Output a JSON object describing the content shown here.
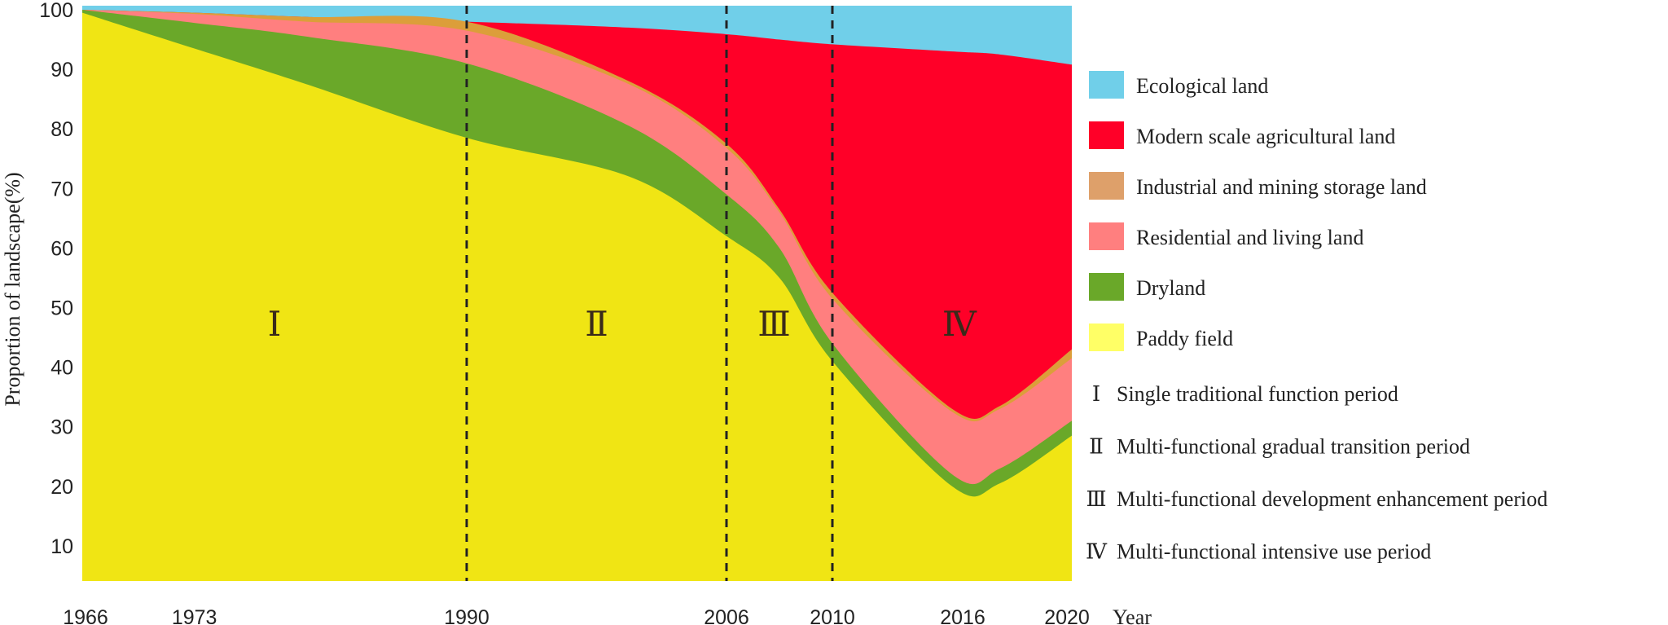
{
  "chart_data": {
    "type": "area",
    "stacked": true,
    "title": "",
    "xlabel": "Year",
    "ylabel": "Proportion of landscape(%)",
    "ylim": [
      4,
      100
    ],
    "yticks": [
      10,
      20,
      30,
      40,
      50,
      60,
      70,
      80,
      90,
      100
    ],
    "xticks": [
      1966,
      1973,
      1990,
      2006,
      2010,
      2016,
      2020
    ],
    "x": [
      1966,
      1973,
      1980,
      1990,
      2000,
      2006,
      2008,
      2010,
      2015,
      2017,
      2020
    ],
    "series": [
      {
        "name": "Paddy field",
        "color": "#f0e514",
        "legend_color": "#ffff66",
        "values": [
          99.5,
          93.5,
          87.5,
          78.5,
          72,
          62,
          55,
          41,
          20,
          20.5,
          28.5
        ]
      },
      {
        "name": "Dryland",
        "color": "#6aa829",
        "values": [
          0.5,
          4.3,
          8,
          12.5,
          8.5,
          7,
          5,
          3,
          2,
          2.5,
          2.5
        ]
      },
      {
        "name": "Residential and living land",
        "color": "#ff7f7f",
        "values": [
          0,
          1.5,
          2.5,
          5.5,
          7,
          7.8,
          6,
          7.5,
          10.5,
          10,
          10.5
        ]
      },
      {
        "name": "Industrial and mining storage land",
        "color": "#dc9e3a",
        "legend_color": "#dea06a",
        "values": [
          0,
          0.2,
          0.8,
          1.5,
          0.5,
          0.7,
          0.5,
          1,
          0.5,
          0.5,
          1.5
        ]
      },
      {
        "name": "Modern scale agricultural land",
        "color": "#ff0028",
        "values": [
          0,
          0,
          0,
          0,
          9,
          18.4,
          28.5,
          41.7,
          60,
          59,
          47.8
        ]
      },
      {
        "name": "Ecological land",
        "color": "#70cfe9",
        "values": [
          0,
          0.5,
          1.2,
          2,
          3,
          4.1,
          5,
          5.8,
          7,
          7.5,
          9.2
        ]
      }
    ],
    "period_boundaries": [
      1990,
      2006,
      2010
    ],
    "periods": [
      {
        "numeral": "Ⅰ",
        "label": "Single traditional function period",
        "center_year": 1978
      },
      {
        "numeral": "Ⅱ",
        "label": "Multi-functional gradual transition period",
        "center_year": 1998
      },
      {
        "numeral": "Ⅲ",
        "label": "Multi-functional development enhancement period",
        "center_year": 2007.8
      },
      {
        "numeral": "Ⅳ",
        "label": "Multi-functional intensive use period",
        "center_year": 2015.3
      }
    ],
    "legend_placement": "right",
    "grid": false
  }
}
